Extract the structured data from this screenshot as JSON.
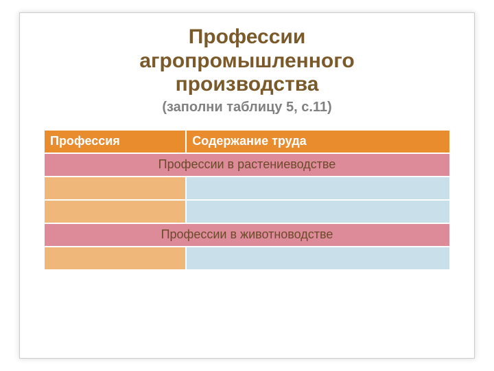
{
  "title": {
    "line1": "Профессии",
    "line2": "агропромышленного",
    "line3": "производства",
    "subtitle": "(заполни таблицу 5, с.11)",
    "main_color": "#7a5a2a",
    "sub_color": "#808080"
  },
  "table": {
    "col_left_width": "35%",
    "col_right_width": "65%",
    "header": {
      "bg": "#e98c2e",
      "fg": "#ffffff",
      "cells": [
        "Профессия",
        "Содержание труда"
      ]
    },
    "rows": [
      {
        "type": "section",
        "bg": "#dd8a99",
        "fg": "#6b4a2a",
        "text": "Профессии в растениеводстве"
      },
      {
        "type": "data",
        "left_bg": "#f0b77a",
        "right_bg": "#c9e0ea",
        "left": "",
        "right": ""
      },
      {
        "type": "data",
        "left_bg": "#f0b77a",
        "right_bg": "#c9e0ea",
        "left": "",
        "right": ""
      },
      {
        "type": "section",
        "bg": "#dd8a99",
        "fg": "#6b4a2a",
        "text": "Профессии в животноводстве"
      },
      {
        "type": "data",
        "left_bg": "#f0b77a",
        "right_bg": "#c9e0ea",
        "left": "",
        "right": ""
      }
    ]
  }
}
